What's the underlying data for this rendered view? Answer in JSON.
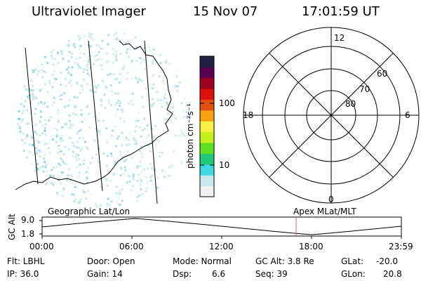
{
  "header": {
    "instrument": "Ultraviolet Imager",
    "date": "15 Nov 07",
    "time": "17:01:59 UT"
  },
  "colorbar": {
    "label": "photon cm⁻²s⁻¹",
    "ticks": [
      "100",
      "10"
    ],
    "colors": [
      "#f0f0f0",
      "#c8e8f0",
      "#40d8e0",
      "#20c878",
      "#60e020",
      "#c8f020",
      "#f8f040",
      "#f8a010",
      "#e05010",
      "#e01010",
      "#a00020",
      "#580050",
      "#202040"
    ]
  },
  "polar": {
    "mlt_labels": {
      "top": "12",
      "left": "18",
      "right": "6",
      "bottom": "0"
    },
    "lat_labels": [
      "60",
      "70",
      "80"
    ]
  },
  "timeline": {
    "axis_label": "GC Alt",
    "y_ticks": [
      "9.0",
      "1.8"
    ],
    "left_label": "Geographic Lat/Lon",
    "right_label": "Apex MLat/MLT",
    "x_ticks": [
      "00:00",
      "06:00",
      "12:00",
      "18:00",
      "23:59"
    ],
    "marker_color": "#e06060"
  },
  "status": {
    "filter": "Flt: LBHL",
    "ip": "IP: 36.0",
    "door": "Door: Open",
    "gain": "Gain: 14",
    "mode": "Mode: Normal",
    "dsp_label": "Dsp:",
    "dsp_value": "6.6",
    "gc_alt": "GC Alt: 3.8 Re",
    "seq": "Seq: 39",
    "glat_label": "GLat:",
    "glat_value": "-20.0",
    "glon_label": "GLon:",
    "glon_value": "20.8"
  }
}
